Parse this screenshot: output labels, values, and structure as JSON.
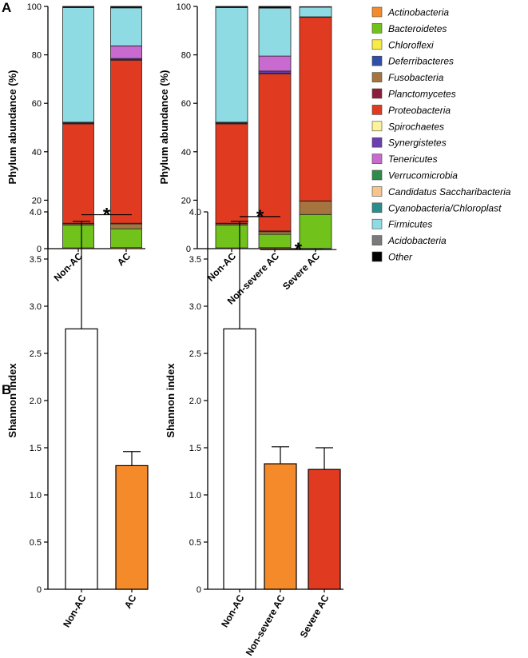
{
  "panels": {
    "a": "A",
    "b": "B"
  },
  "legend": [
    {
      "name": "Actinobacteria",
      "color": "#f58a2b",
      "italic": true
    },
    {
      "name": "Bacteroidetes",
      "color": "#71c21b",
      "italic": true
    },
    {
      "name": "Chloroflexi",
      "color": "#f6ec45",
      "italic": true
    },
    {
      "name": "Deferribacteres",
      "color": "#2f4fa8",
      "italic": true
    },
    {
      "name": "Fusobacteria",
      "color": "#a6743f",
      "italic": true
    },
    {
      "name": "Planctomycetes",
      "color": "#8b1c3c",
      "italic": true
    },
    {
      "name": "Proteobacteria",
      "color": "#e03a20",
      "italic": true
    },
    {
      "name": "Spirochaetes",
      "color": "#fdf39a",
      "italic": true
    },
    {
      "name": "Synergistetes",
      "color": "#6a3fb0",
      "italic": true
    },
    {
      "name": "Tenericutes",
      "color": "#c86ad0",
      "italic": true
    },
    {
      "name": "Verrucomicrobia",
      "color": "#2e8b4a",
      "italic": true
    },
    {
      "name": "Candidatus Saccharibacteria",
      "color": "#f7c58c",
      "italic": true
    },
    {
      "name": "Cyanobacteria/Chloroplast",
      "color": "#2a8f8a",
      "italic": true
    },
    {
      "name": "Firmicutes",
      "color": "#8fdbe3",
      "italic": true
    },
    {
      "name": "Acidobacteria",
      "color": "#7a7a7a",
      "italic": true
    },
    {
      "name": "Other",
      "color": "#000000",
      "italic": true
    }
  ],
  "chart_data": [
    {
      "id": "a1",
      "type": "bar",
      "stacked": true,
      "ylabel": "Phylum abundance (%)",
      "ylim": [
        0,
        100
      ],
      "yticks": [
        0,
        20,
        40,
        60,
        80,
        100
      ],
      "categories": [
        "Non-AC",
        "AC"
      ],
      "series": [
        {
          "name": "Actinobacteria",
          "values": [
            0.3,
            0.4
          ]
        },
        {
          "name": "Bacteroidetes",
          "values": [
            9.5,
            7.8
          ]
        },
        {
          "name": "Fusobacteria",
          "values": [
            0.5,
            2.0
          ]
        },
        {
          "name": "Acidobacteria",
          "values": [
            0.2,
            0.3
          ]
        },
        {
          "name": "Proteobacteria",
          "values": [
            41.0,
            67.3
          ]
        },
        {
          "name": "Spirochaetes",
          "values": [
            0.2,
            0.3
          ]
        },
        {
          "name": "Synergistetes",
          "values": [
            0.2,
            0.4
          ]
        },
        {
          "name": "Tenericutes",
          "values": [
            0.3,
            5.2
          ]
        },
        {
          "name": "Firmicutes",
          "values": [
            47.3,
            15.7
          ]
        },
        {
          "name": "Other",
          "values": [
            0.5,
            0.6
          ]
        }
      ]
    },
    {
      "id": "a2",
      "type": "bar",
      "stacked": true,
      "ylabel": "Phylum abundance (%)",
      "ylim": [
        0,
        100
      ],
      "yticks": [
        0,
        20,
        40,
        60,
        80,
        100
      ],
      "categories": [
        "Non-AC",
        "Non-severe AC",
        "Severe AC"
      ],
      "series": [
        {
          "name": "Actinobacteria",
          "values": [
            0.3,
            0.4,
            0.1
          ]
        },
        {
          "name": "Bacteroidetes",
          "values": [
            9.5,
            5.5,
            14.0
          ]
        },
        {
          "name": "Fusobacteria",
          "values": [
            0.5,
            1.1,
            5.5
          ]
        },
        {
          "name": "Acidobacteria",
          "values": [
            0.2,
            0.3,
            0.1
          ]
        },
        {
          "name": "Proteobacteria",
          "values": [
            41.0,
            64.8,
            75.8
          ]
        },
        {
          "name": "Spirochaetes",
          "values": [
            0.2,
            0.3,
            0.1
          ]
        },
        {
          "name": "Synergistetes",
          "values": [
            0.2,
            0.9,
            0.1
          ]
        },
        {
          "name": "Tenericutes",
          "values": [
            0.3,
            6.2,
            0.0
          ]
        },
        {
          "name": "Firmicutes",
          "values": [
            47.3,
            19.8,
            4.0
          ]
        },
        {
          "name": "Other",
          "values": [
            0.5,
            0.7,
            0.2
          ]
        }
      ]
    },
    {
      "id": "b1",
      "type": "bar",
      "ylabel": "Shannon index",
      "ylim": [
        0,
        4.0
      ],
      "yticks": [
        "0",
        "0.5",
        "1.0",
        "1.5",
        "2.0",
        "2.5",
        "3.0",
        "3.5",
        "4.0"
      ],
      "categories": [
        "Non-AC",
        "AC"
      ],
      "values": [
        2.76,
        1.31
      ],
      "errors": [
        1.14,
        0.15
      ],
      "colors": [
        "#ffffff",
        "#f58a2b"
      ],
      "significance": [
        {
          "from": 0,
          "to": 1,
          "y": 3.97,
          "label": "*"
        }
      ]
    },
    {
      "id": "b2",
      "type": "bar",
      "ylabel": "Shannon index",
      "ylim": [
        0,
        4.0
      ],
      "yticks": [
        "0",
        "0.5",
        "1.0",
        "1.5",
        "2.0",
        "2.5",
        "3.0",
        "3.5",
        "4.0"
      ],
      "categories": [
        "Non-AC",
        "Non-severe AC",
        "Severe AC"
      ],
      "values": [
        2.76,
        1.33,
        1.27
      ],
      "errors": [
        1.14,
        0.18,
        0.23
      ],
      "colors": [
        "#ffffff",
        "#f58a2b",
        "#e03a20"
      ],
      "significance": [
        {
          "from": 0,
          "to": 1,
          "y": 3.95,
          "label": "*"
        },
        {
          "from": 0.5,
          "to": 2.3,
          "y": 3.6,
          "label": "*"
        }
      ]
    }
  ]
}
